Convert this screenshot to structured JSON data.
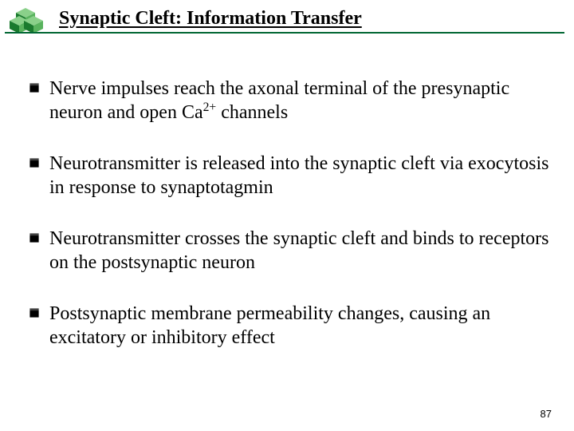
{
  "colors": {
    "accent_green": "#006633",
    "cube_green_dark": "#1a7a2e",
    "cube_green_light": "#59b35e",
    "cube_green_top": "#8ad08a",
    "bullet_fill": "#000000",
    "text": "#000000",
    "background": "#ffffff"
  },
  "title": "Synaptic Cleft: Information Transfer",
  "title_fontsize": 24,
  "body_fontsize": 24,
  "bullets": [
    {
      "html": "Nerve impulses reach the axonal terminal of the presynaptic neuron and open Ca<span class=\"supnum\">2+</span> channels"
    },
    {
      "html": "Neurotransmitter is released into the synaptic cleft via exocytosis in response to synaptotagmin"
    },
    {
      "html": "Neurotransmitter crosses the synaptic cleft and binds to receptors on the postsynaptic neuron"
    },
    {
      "html": "Postsynaptic membrane permeability changes, causing an excitatory or inhibitory effect"
    }
  ],
  "page_number": "87"
}
